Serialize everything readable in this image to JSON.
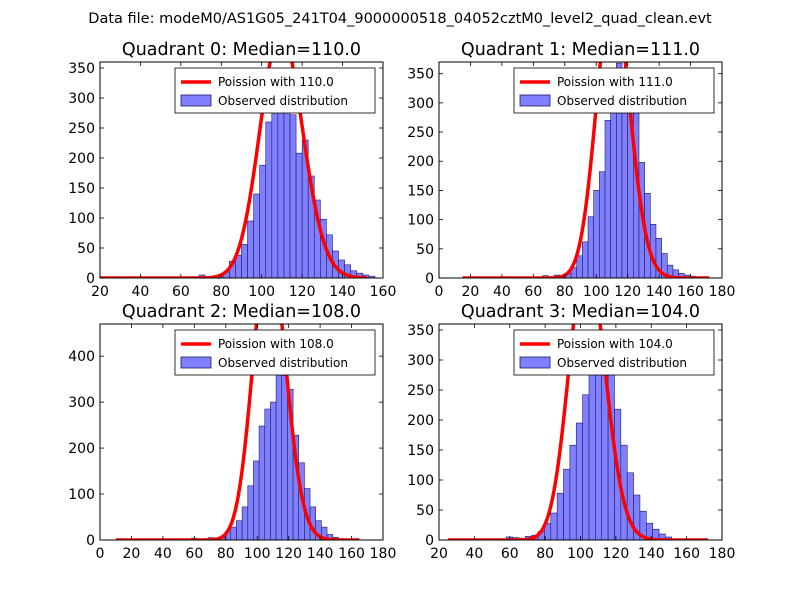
{
  "suptitle": "Data file: modeM0/AS1G05_241T04_9000000518_04052cztM0_level2_quad_clean.evt",
  "colors": {
    "poisson_line": "#ff0000",
    "hist_fill": "#8080ff",
    "hist_edge": "#1a1a66"
  },
  "chart_data": [
    {
      "type": "bar",
      "title": "Quadrant 0: Median=110.0",
      "median": 110.0,
      "xlim": [
        20,
        160
      ],
      "ylim": [
        0,
        360
      ],
      "xticks": [
        20,
        40,
        60,
        80,
        100,
        120,
        140,
        160
      ],
      "yticks": [
        0,
        50,
        100,
        150,
        200,
        250,
        300,
        350
      ],
      "legend": [
        "Poission with 110.0",
        "Observed distribution"
      ],
      "legend_position": "upper-right",
      "bins": {
        "start": 66,
        "width": 3,
        "values": [
          2,
          5,
          2,
          2,
          4,
          10,
          28,
          38,
          56,
          95,
          140,
          188,
          260,
          282,
          310,
          345,
          272,
          208,
          230,
          170,
          130,
          98,
          72,
          45,
          30,
          22,
          12,
          8,
          5,
          3
        ]
      },
      "poisson": {
        "lambda": 110.0,
        "total": 3600,
        "bin_width": 3,
        "x_range": [
          20,
          152
        ]
      }
    },
    {
      "type": "bar",
      "title": "Quadrant 1: Median=111.0",
      "median": 111.0,
      "xlim": [
        0,
        180
      ],
      "ylim": [
        0,
        370
      ],
      "xticks": [
        0,
        20,
        40,
        60,
        80,
        100,
        120,
        140,
        160,
        180
      ],
      "yticks": [
        0,
        50,
        100,
        150,
        200,
        250,
        300,
        350
      ],
      "legend": [
        "Poission with 111.0",
        "Observed distribution"
      ],
      "legend_position": "upper-right",
      "bins": {
        "start": 66,
        "width": 3.6,
        "values": [
          4,
          2,
          5,
          3,
          8,
          18,
          38,
          62,
          105,
          150,
          182,
          270,
          315,
          368,
          355,
          350,
          310,
          198,
          145,
          92,
          68,
          42,
          22,
          14,
          8,
          5,
          3
        ]
      },
      "poisson": {
        "lambda": 111.0,
        "total": 3600,
        "bin_width": 3.6,
        "x_range": [
          15,
          172
        ]
      }
    },
    {
      "type": "bar",
      "title": "Quadrant 2: Median=108.0",
      "median": 108.0,
      "xlim": [
        0,
        180
      ],
      "ylim": [
        0,
        470
      ],
      "xticks": [
        0,
        20,
        40,
        60,
        80,
        100,
        120,
        140,
        160,
        180
      ],
      "yticks": [
        0,
        100,
        200,
        300,
        400
      ],
      "legend": [
        "Poission with 108.0",
        "Observed distribution"
      ],
      "legend_position": "upper-right",
      "bins": {
        "start": 58,
        "width": 3.6,
        "values": [
          4,
          2,
          3,
          5,
          4,
          6,
          18,
          28,
          42,
          72,
          118,
          172,
          248,
          285,
          300,
          398,
          358,
          328,
          228,
          168,
          112,
          72,
          42,
          28,
          12,
          6,
          3
        ]
      },
      "poisson": {
        "lambda": 108.0,
        "total": 4600,
        "bin_width": 3.6,
        "x_range": [
          10,
          165
        ]
      }
    },
    {
      "type": "bar",
      "title": "Quadrant 3: Median=104.0",
      "median": 104.0,
      "xlim": [
        20,
        180
      ],
      "ylim": [
        0,
        360
      ],
      "xticks": [
        20,
        40,
        60,
        80,
        100,
        120,
        140,
        160,
        180
      ],
      "yticks": [
        0,
        50,
        100,
        150,
        200,
        250,
        300,
        350
      ],
      "legend": [
        "Poission with 104.0",
        "Observed distribution"
      ],
      "legend_position": "upper-right",
      "bins": {
        "start": 58,
        "width": 3.6,
        "values": [
          5,
          4,
          3,
          6,
          8,
          14,
          28,
          45,
          78,
          118,
          158,
          195,
          242,
          282,
          332,
          340,
          290,
          218,
          158,
          112,
          75,
          48,
          28,
          18,
          10,
          5
        ]
      },
      "poisson": {
        "lambda": 104.0,
        "total": 3350,
        "bin_width": 3.6,
        "x_range": [
          25,
          172
        ]
      }
    }
  ]
}
